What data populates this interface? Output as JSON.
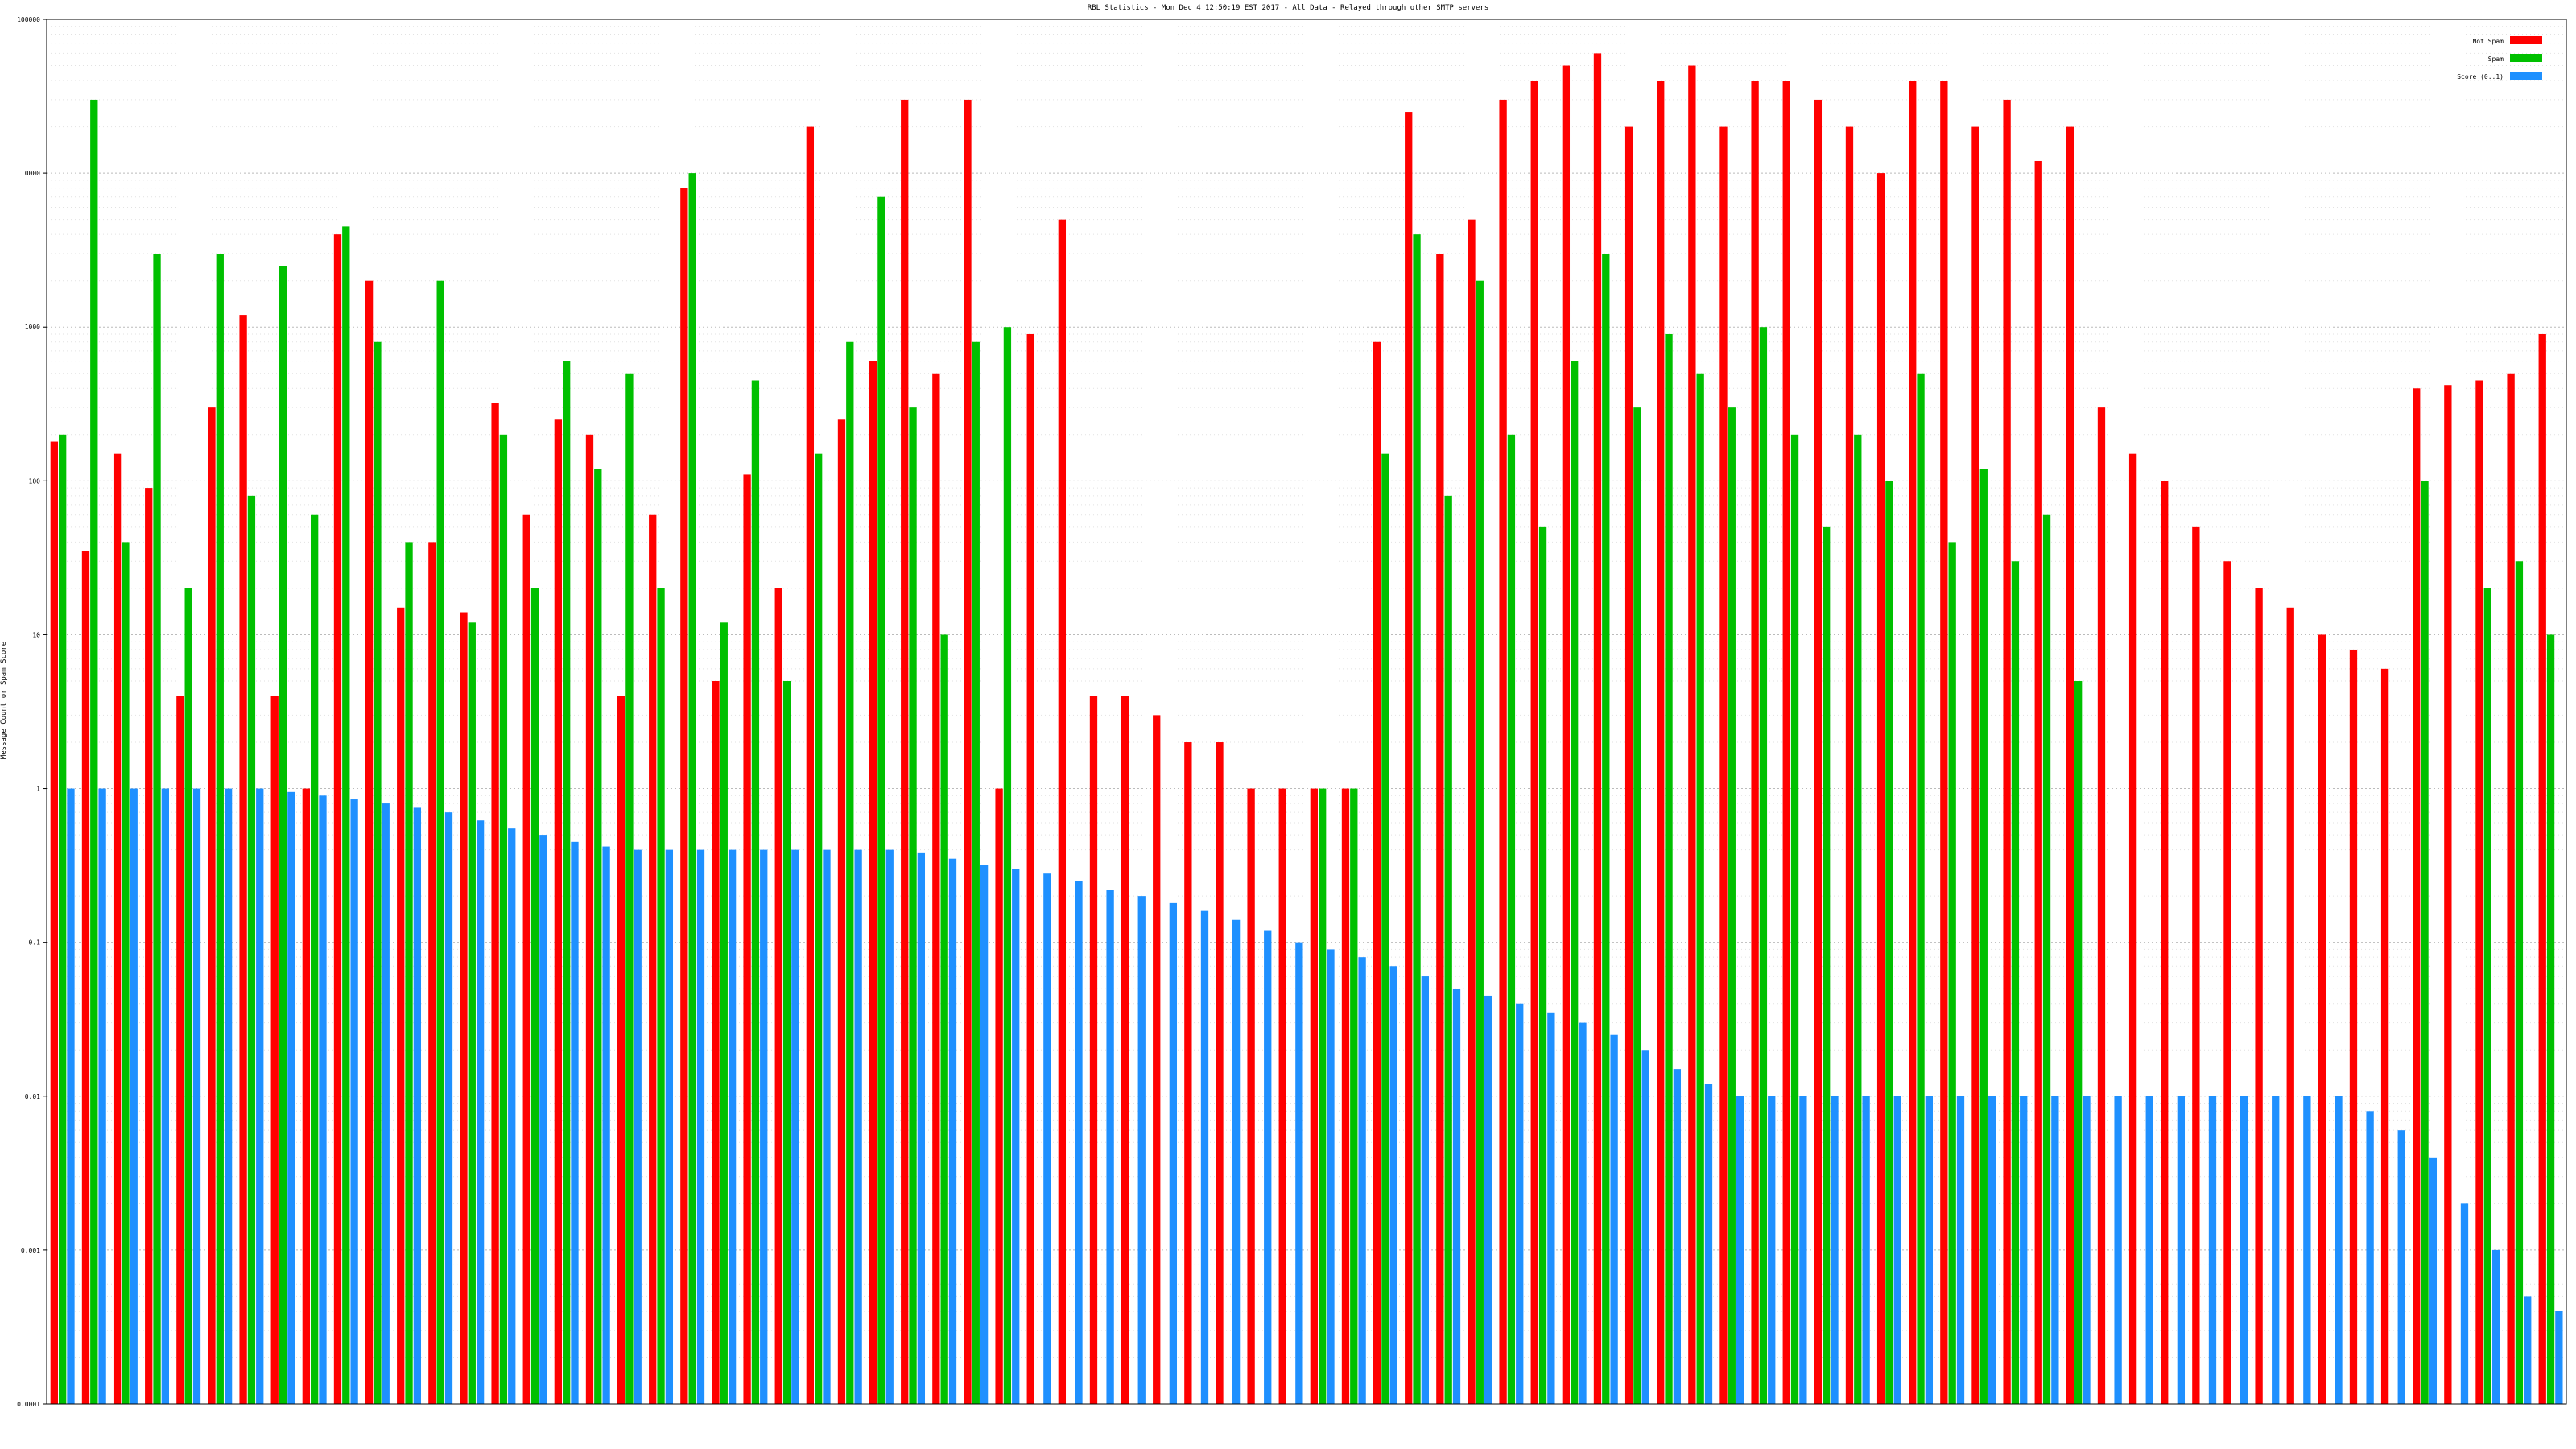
{
  "chart_data": {
    "type": "bar",
    "title": "RBL Statistics - Mon Dec  4 12:50:19 EST 2017 - All Data - Relayed through other SMTP servers",
    "ylabel": "Message Count or Spam Score",
    "xlabel": "",
    "yscale": "log",
    "ylim": [
      0.0001,
      100000
    ],
    "y_ticks": [
      "0.0001",
      "0.001",
      "0.01",
      "0.1",
      "1",
      "10",
      "100",
      "1000",
      "10000",
      "100000"
    ],
    "grid": true,
    "legend_position": "top-right",
    "legend": [
      {
        "label": "Not Spam",
        "color": "#ff0000"
      },
      {
        "label": "Spam",
        "color": "#00c000"
      },
      {
        "label": "Score (0..1)",
        "color": "#1e90ff"
      }
    ],
    "categories_count": 80,
    "series": [
      {
        "name": "Not Spam",
        "color": "#ff0000",
        "values": [
          180,
          35,
          150,
          90,
          4,
          300,
          1200,
          4,
          1,
          4000,
          2000,
          15,
          40,
          14,
          320,
          60,
          250,
          200,
          4,
          60,
          8000,
          5,
          110,
          20,
          20000,
          250,
          600,
          30000,
          500,
          30000,
          1,
          900,
          5000,
          4,
          4,
          3,
          2,
          2,
          1,
          1,
          1,
          1,
          800,
          25000,
          3000,
          5000,
          30000,
          40000,
          50000,
          60000,
          20000,
          40000,
          50000,
          20000,
          40000,
          40000,
          30000,
          20000,
          10000,
          40000,
          40000,
          20000,
          30000,
          12000,
          20000,
          300,
          150,
          100,
          50,
          30,
          20,
          15,
          10,
          8,
          6,
          400,
          420,
          450,
          500,
          900
        ]
      },
      {
        "name": "Spam",
        "color": "#00c000",
        "values": [
          200,
          30000,
          40,
          3000,
          20,
          3000,
          80,
          2500,
          60,
          4500,
          800,
          40,
          2000,
          12,
          200,
          20,
          600,
          120,
          500,
          20,
          10000,
          12,
          450,
          5,
          150,
          800,
          7000,
          300,
          10,
          800,
          1000,
          0,
          0,
          0,
          0,
          0,
          0,
          0,
          0,
          0,
          1,
          1,
          150,
          4000,
          80,
          2000,
          200,
          50,
          600,
          3000,
          300,
          900,
          500,
          300,
          1000,
          200,
          50,
          200,
          100,
          500,
          40,
          120,
          30,
          60,
          5,
          0,
          0,
          0,
          0,
          0,
          0,
          0,
          0,
          0,
          0,
          100,
          0,
          20,
          30,
          10
        ]
      },
      {
        "name": "Score (0..1)",
        "values": [
          1,
          1,
          1,
          1,
          1,
          1,
          1,
          0.95,
          0.9,
          0.85,
          0.8,
          0.75,
          0.7,
          0.62,
          0.55,
          0.5,
          0.45,
          0.42,
          0.4,
          0.4,
          0.4,
          0.4,
          0.4,
          0.4,
          0.4,
          0.4,
          0.4,
          0.38,
          0.35,
          0.32,
          0.3,
          0.28,
          0.25,
          0.22,
          0.2,
          0.18,
          0.16,
          0.14,
          0.12,
          0.1,
          0.09,
          0.08,
          0.07,
          0.06,
          0.05,
          0.045,
          0.04,
          0.035,
          0.03,
          0.025,
          0.02,
          0.015,
          0.012,
          0.01,
          0.01,
          0.01,
          0.01,
          0.01,
          0.01,
          0.01,
          0.01,
          0.01,
          0.01,
          0.01,
          0.01,
          0.01,
          0.01,
          0.01,
          0.01,
          0.01,
          0.01,
          0.01,
          0.01,
          0.008,
          0.006,
          0.004,
          0.002,
          0.001,
          0.0005,
          0.0004
        ]
      }
    ]
  }
}
